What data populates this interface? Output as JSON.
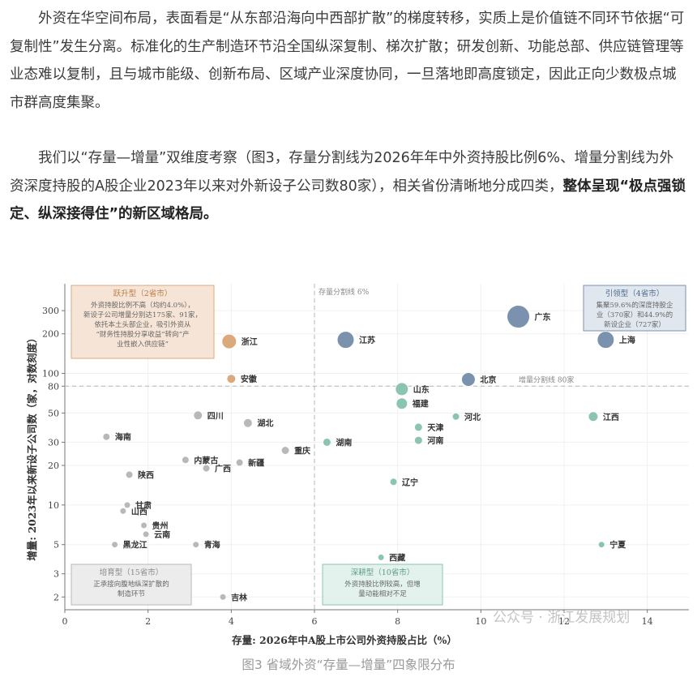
{
  "article": {
    "para1": "外资在华空间布局，表面看是“从东部沿海向中西部扩散”的梯度转移，实质上是价值链不同环节依据“可复制性”发生分离。标准化的生产制造环节沿全国纵深复制、梯次扩散；研发创新、功能总部、供应链管理等业态难以复制，且与城市能级、创新布局、区域产业深度协同，一旦落地即高度锁定，因此正向少数极点城市群高度集聚。",
    "para2_text": "我们以“存量—增量”双维度考察（图3，存量分割线为2026年年中外资持股比例6%、增量分割线为外资深度持股的A股企业2023年以来对外新设子公司数80家），相关省份清晰地分成四类，",
    "para2_bold": "整体呈现“极点强锁定、纵深接得住”的新区域格局。"
  },
  "caption": "图3  省域外资“存量—增量”四象限分布",
  "watermark": "公众号 · 浙江发展规划",
  "colors": {
    "lead": "#6d87a6",
    "rise": "#d9a070",
    "deep": "#7fbfa8",
    "cult": "#b1b1b1",
    "divider": "#b5b5b5"
  },
  "chart_data": {
    "type": "scatter",
    "xlabel": "存量: 2026年中A股上市公司外资持股占比（%）",
    "ylabel": "增量: 2023年以来新设子公司数（家，对数刻度）",
    "xlim": [
      0,
      15
    ],
    "ylim": [
      1.6,
      480
    ],
    "y_scale": "log",
    "x_ticks": [
      0,
      2,
      4,
      6,
      8,
      10,
      12,
      14
    ],
    "y_ticks": [
      2,
      3,
      5,
      10,
      20,
      30,
      50,
      80,
      100,
      200,
      300
    ],
    "grid": true,
    "vline": {
      "x": 6,
      "label": "存量分割线 6%"
    },
    "hline": {
      "y": 80,
      "label": "增量分割线 80家"
    },
    "quadrant_boxes": [
      {
        "title": "跃升型（2省市）",
        "text": [
          "外资持股比例不高（均约4.0%），",
          "新设子公司增量分别达175家、91家，",
          "依托本土头部企业，吸引外资从",
          "“财务性持股分享收益”转向“产",
          "业性嵌入供应链”"
        ],
        "group": "rise",
        "corner": "top-left"
      },
      {
        "title": "引领型（4省市）",
        "text": [
          "集聚59.6%的深度持股企",
          "业（370家）和44.9%的",
          "新设企业（727家）"
        ],
        "group": "lead",
        "corner": "top-right"
      },
      {
        "title": "培育型（15省市）",
        "text": [
          "正承接向腹地纵深扩散的",
          "制造环节"
        ],
        "group": "cult",
        "corner": "bottom-left"
      },
      {
        "title": "深耕型（10省市）",
        "text": [
          "外资持股比例较高，但增",
          "量动能相对不足"
        ],
        "group": "deep",
        "corner": "bottom-center"
      }
    ],
    "points": [
      {
        "name": "广东",
        "x": 10.9,
        "y": 270,
        "size": 14,
        "group": "lead"
      },
      {
        "name": "上海",
        "x": 13.0,
        "y": 180,
        "size": 10.5,
        "group": "lead"
      },
      {
        "name": "江苏",
        "x": 6.75,
        "y": 180,
        "size": 10.5,
        "group": "lead"
      },
      {
        "name": "北京",
        "x": 9.7,
        "y": 90,
        "size": 8.5,
        "group": "lead"
      },
      {
        "name": "浙江",
        "x": 3.95,
        "y": 175,
        "size": 9,
        "group": "rise"
      },
      {
        "name": "安徽",
        "x": 4.0,
        "y": 91,
        "size": 5.5,
        "group": "rise"
      },
      {
        "name": "山东",
        "x": 8.1,
        "y": 76,
        "size": 8,
        "group": "deep"
      },
      {
        "name": "福建",
        "x": 8.1,
        "y": 59,
        "size": 7,
        "group": "deep"
      },
      {
        "name": "天津",
        "x": 8.5,
        "y": 39,
        "size": 5,
        "group": "deep"
      },
      {
        "name": "河北",
        "x": 9.4,
        "y": 47,
        "size": 4.5,
        "group": "deep"
      },
      {
        "name": "河南",
        "x": 8.5,
        "y": 31,
        "size": 5,
        "group": "deep"
      },
      {
        "name": "湖南",
        "x": 6.3,
        "y": 30,
        "size": 5,
        "group": "deep"
      },
      {
        "name": "辽宁",
        "x": 7.9,
        "y": 15,
        "size": 4.5,
        "group": "deep"
      },
      {
        "name": "西藏",
        "x": 7.6,
        "y": 4,
        "size": 4,
        "group": "deep"
      },
      {
        "name": "江西",
        "x": 12.7,
        "y": 47,
        "size": 6,
        "group": "deep"
      },
      {
        "name": "宁夏",
        "x": 12.9,
        "y": 5,
        "size": 4,
        "group": "deep"
      },
      {
        "name": "四川",
        "x": 3.2,
        "y": 48,
        "size": 5.5,
        "group": "cult"
      },
      {
        "name": "湖北",
        "x": 4.4,
        "y": 42,
        "size": 5.5,
        "group": "cult"
      },
      {
        "name": "海南",
        "x": 1.0,
        "y": 33,
        "size": 4.5,
        "group": "cult"
      },
      {
        "name": "重庆",
        "x": 5.3,
        "y": 26,
        "size": 5,
        "group": "cult"
      },
      {
        "name": "内蒙古",
        "x": 2.9,
        "y": 22,
        "size": 4.5,
        "group": "cult"
      },
      {
        "name": "新疆",
        "x": 4.2,
        "y": 21,
        "size": 4.5,
        "group": "cult"
      },
      {
        "name": "广西",
        "x": 3.4,
        "y": 19,
        "size": 4.5,
        "group": "cult"
      },
      {
        "name": "陕西",
        "x": 1.55,
        "y": 17,
        "size": 4.5,
        "group": "cult"
      },
      {
        "name": "甘肃",
        "x": 1.5,
        "y": 10,
        "size": 4,
        "group": "cult"
      },
      {
        "name": "山西",
        "x": 1.4,
        "y": 9,
        "size": 4,
        "group": "cult"
      },
      {
        "name": "贵州",
        "x": 1.9,
        "y": 7,
        "size": 4,
        "group": "cult"
      },
      {
        "name": "云南",
        "x": 1.95,
        "y": 6,
        "size": 4,
        "group": "cult"
      },
      {
        "name": "黑龙江",
        "x": 1.2,
        "y": 5,
        "size": 4,
        "group": "cult"
      },
      {
        "name": "青海",
        "x": 3.15,
        "y": 5,
        "size": 4,
        "group": "cult"
      },
      {
        "name": "吉林",
        "x": 3.8,
        "y": 2,
        "size": 4,
        "group": "cult"
      }
    ]
  }
}
